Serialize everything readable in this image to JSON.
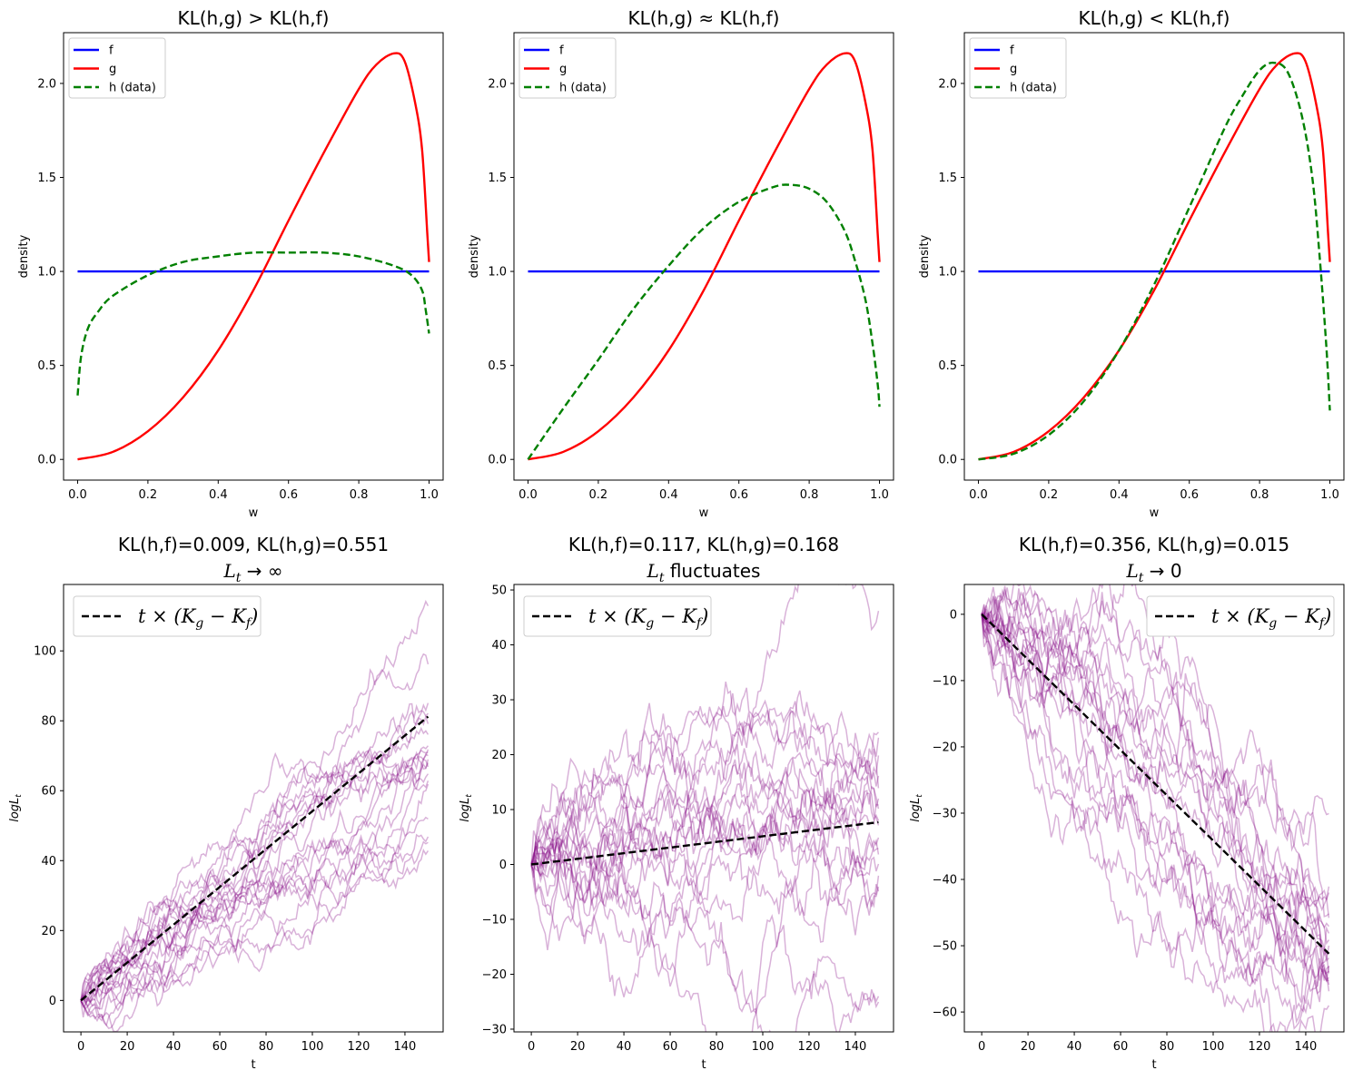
{
  "chart_data": [
    {
      "type": "line",
      "title": "KL(h,g) > KL(h,f)",
      "xlabel": "w",
      "ylabel": "density",
      "xlim": [
        -0.04,
        1.04
      ],
      "ylim": [
        -0.11,
        2.27
      ],
      "xticks": [
        "0.0",
        "0.2",
        "0.4",
        "0.6",
        "0.8",
        "1.0"
      ],
      "yticks": [
        "0.0",
        "0.5",
        "1.0",
        "1.5",
        "2.0"
      ],
      "legend_position": "upper-left",
      "grid": false,
      "series": [
        {
          "name": "f",
          "color": "#0000ff",
          "style": "solid",
          "points": [
            [
              0,
              1.0
            ],
            [
              1,
              1.0
            ]
          ]
        },
        {
          "name": "g",
          "color": "#ff0000",
          "style": "solid",
          "points": [
            [
              0,
              0
            ],
            [
              0.1,
              0.04
            ],
            [
              0.2,
              0.15
            ],
            [
              0.3,
              0.33
            ],
            [
              0.4,
              0.58
            ],
            [
              0.5,
              0.9
            ],
            [
              0.6,
              1.27
            ],
            [
              0.7,
              1.63
            ],
            [
              0.8,
              1.97
            ],
            [
              0.85,
              2.1
            ],
            [
              0.9,
              2.16
            ],
            [
              0.93,
              2.12
            ],
            [
              0.96,
              1.9
            ],
            [
              0.98,
              1.65
            ],
            [
              0.995,
              1.2
            ],
            [
              1.0,
              1.05
            ]
          ]
        },
        {
          "name": "h (data)",
          "color": "#008000",
          "style": "dashed",
          "points": [
            [
              0,
              0.34
            ],
            [
              0.01,
              0.55
            ],
            [
              0.03,
              0.7
            ],
            [
              0.06,
              0.79
            ],
            [
              0.1,
              0.87
            ],
            [
              0.2,
              0.98
            ],
            [
              0.3,
              1.05
            ],
            [
              0.4,
              1.08
            ],
            [
              0.5,
              1.1
            ],
            [
              0.6,
              1.1
            ],
            [
              0.7,
              1.1
            ],
            [
              0.8,
              1.08
            ],
            [
              0.9,
              1.03
            ],
            [
              0.95,
              0.98
            ],
            [
              0.98,
              0.9
            ],
            [
              0.99,
              0.8
            ],
            [
              1.0,
              0.67
            ]
          ]
        }
      ]
    },
    {
      "type": "line",
      "title": "KL(h,g) ≈ KL(h,f)",
      "xlabel": "w",
      "ylabel": "density",
      "xlim": [
        -0.04,
        1.04
      ],
      "ylim": [
        -0.11,
        2.27
      ],
      "xticks": [
        "0.0",
        "0.2",
        "0.4",
        "0.6",
        "0.8",
        "1.0"
      ],
      "yticks": [
        "0.0",
        "0.5",
        "1.0",
        "1.5",
        "2.0"
      ],
      "legend_position": "upper-left",
      "grid": false,
      "series": [
        {
          "name": "f",
          "color": "#0000ff",
          "style": "solid",
          "points": [
            [
              0,
              1.0
            ],
            [
              1,
              1.0
            ]
          ]
        },
        {
          "name": "g",
          "color": "#ff0000",
          "style": "solid",
          "points": [
            [
              0,
              0
            ],
            [
              0.1,
              0.04
            ],
            [
              0.2,
              0.15
            ],
            [
              0.3,
              0.33
            ],
            [
              0.4,
              0.58
            ],
            [
              0.5,
              0.9
            ],
            [
              0.6,
              1.27
            ],
            [
              0.7,
              1.63
            ],
            [
              0.8,
              1.97
            ],
            [
              0.85,
              2.1
            ],
            [
              0.9,
              2.16
            ],
            [
              0.93,
              2.12
            ],
            [
              0.96,
              1.9
            ],
            [
              0.98,
              1.65
            ],
            [
              0.995,
              1.2
            ],
            [
              1.0,
              1.05
            ]
          ]
        },
        {
          "name": "h (data)",
          "color": "#008000",
          "style": "dashed",
          "points": [
            [
              0,
              0
            ],
            [
              0.1,
              0.27
            ],
            [
              0.2,
              0.53
            ],
            [
              0.3,
              0.8
            ],
            [
              0.4,
              1.03
            ],
            [
              0.5,
              1.23
            ],
            [
              0.6,
              1.37
            ],
            [
              0.7,
              1.45
            ],
            [
              0.75,
              1.46
            ],
            [
              0.8,
              1.44
            ],
            [
              0.85,
              1.37
            ],
            [
              0.9,
              1.22
            ],
            [
              0.93,
              1.06
            ],
            [
              0.96,
              0.85
            ],
            [
              0.98,
              0.62
            ],
            [
              0.995,
              0.4
            ],
            [
              1.0,
              0.28
            ]
          ]
        }
      ]
    },
    {
      "type": "line",
      "title": "KL(h,g) < KL(h,f)",
      "xlabel": "w",
      "ylabel": "density",
      "xlim": [
        -0.04,
        1.04
      ],
      "ylim": [
        -0.11,
        2.27
      ],
      "xticks": [
        "0.0",
        "0.2",
        "0.4",
        "0.6",
        "0.8",
        "1.0"
      ],
      "yticks": [
        "0.0",
        "0.5",
        "1.0",
        "1.5",
        "2.0"
      ],
      "legend_position": "upper-left",
      "grid": false,
      "series": [
        {
          "name": "f",
          "color": "#0000ff",
          "style": "solid",
          "points": [
            [
              0,
              1.0
            ],
            [
              1,
              1.0
            ]
          ]
        },
        {
          "name": "g",
          "color": "#ff0000",
          "style": "solid",
          "points": [
            [
              0,
              0
            ],
            [
              0.1,
              0.04
            ],
            [
              0.2,
              0.15
            ],
            [
              0.3,
              0.33
            ],
            [
              0.4,
              0.58
            ],
            [
              0.5,
              0.9
            ],
            [
              0.6,
              1.27
            ],
            [
              0.7,
              1.63
            ],
            [
              0.8,
              1.97
            ],
            [
              0.85,
              2.1
            ],
            [
              0.9,
              2.16
            ],
            [
              0.93,
              2.12
            ],
            [
              0.96,
              1.9
            ],
            [
              0.98,
              1.65
            ],
            [
              0.995,
              1.2
            ],
            [
              1.0,
              1.05
            ]
          ]
        },
        {
          "name": "h (data)",
          "color": "#008000",
          "style": "dashed",
          "points": [
            [
              0,
              0
            ],
            [
              0.1,
              0.03
            ],
            [
              0.2,
              0.13
            ],
            [
              0.3,
              0.31
            ],
            [
              0.4,
              0.58
            ],
            [
              0.5,
              0.93
            ],
            [
              0.6,
              1.34
            ],
            [
              0.7,
              1.76
            ],
            [
              0.75,
              1.93
            ],
            [
              0.8,
              2.07
            ],
            [
              0.84,
              2.11
            ],
            [
              0.88,
              2.06
            ],
            [
              0.92,
              1.83
            ],
            [
              0.95,
              1.5
            ],
            [
              0.97,
              1.1
            ],
            [
              0.99,
              0.6
            ],
            [
              1.0,
              0.26
            ]
          ]
        }
      ]
    },
    {
      "type": "line",
      "title": "KL(h,f)=0.009, KL(h,g)=0.551",
      "subtitle": "→ ∞",
      "xlabel": "t",
      "ylabel": "logLt",
      "xlim": [
        -7.5,
        156.5
      ],
      "ylim": [
        -9,
        119
      ],
      "xticks": [
        "0",
        "20",
        "40",
        "60",
        "80",
        "100",
        "120",
        "140"
      ],
      "yticks": [
        "0",
        "20",
        "40",
        "60",
        "80",
        "100"
      ],
      "legend_position": "upper-left",
      "grid": false,
      "n_paths": 20,
      "path_color": "#800080",
      "path_alpha": 0.3,
      "path_final_values": [
        113,
        96,
        85,
        82,
        79,
        76,
        73,
        72,
        71,
        70,
        69,
        68,
        67,
        65,
        63,
        62,
        52,
        47,
        45,
        43
      ],
      "series": [
        {
          "name": "t × (Kg − Kf)",
          "color": "#000000",
          "style": "dashed",
          "points": [
            [
              0,
              0
            ],
            [
              150,
              81.2
            ]
          ]
        }
      ]
    },
    {
      "type": "line",
      "title": "KL(h,f)=0.117, KL(h,g)=0.168",
      "subtitle": "fluctuates",
      "xlabel": "t",
      "ylabel": "logLt",
      "xlim": [
        -7.5,
        156.5
      ],
      "ylim": [
        -30.5,
        51
      ],
      "xticks": [
        "0",
        "20",
        "40",
        "60",
        "80",
        "100",
        "120",
        "140"
      ],
      "yticks": [
        "−30",
        "−20",
        "−10",
        "0",
        "10",
        "20",
        "30",
        "40",
        "50"
      ],
      "legend_position": "upper-left",
      "grid": false,
      "n_paths": 20,
      "path_color": "#800080",
      "path_alpha": 0.3,
      "path_final_values": [
        46,
        24,
        23,
        16,
        14,
        12,
        10,
        8,
        7,
        5,
        3,
        2,
        0,
        -2,
        -4,
        -5,
        -24,
        -25,
        20,
        11
      ],
      "series": [
        {
          "name": "t × (Kg − Kf)",
          "color": "#000000",
          "style": "dashed",
          "points": [
            [
              0,
              0
            ],
            [
              150,
              7.7
            ]
          ]
        }
      ]
    },
    {
      "type": "line",
      "title": "KL(h,f)=0.356, KL(h,g)=0.015",
      "subtitle": "→ 0",
      "xlabel": "t",
      "ylabel": "logLt",
      "xlim": [
        -7.5,
        156.5
      ],
      "ylim": [
        -63,
        4.5
      ],
      "xticks": [
        "0",
        "20",
        "40",
        "60",
        "80",
        "100",
        "120",
        "140"
      ],
      "yticks": [
        "0",
        "−10",
        "−20",
        "−30",
        "−40",
        "−50",
        "−60"
      ],
      "legend_position": "upper-right",
      "grid": false,
      "n_paths": 20,
      "path_color": "#800080",
      "path_alpha": 0.3,
      "path_final_values": [
        -30,
        -41,
        -42,
        -45,
        -46,
        -47,
        -48,
        -49,
        -50,
        -51,
        -52,
        -53,
        -53,
        -54,
        -54,
        -55,
        -55,
        -56,
        -57,
        -59
      ],
      "series": [
        {
          "name": "t × (Kg − Kf)",
          "color": "#000000",
          "style": "dashed",
          "points": [
            [
              0,
              0
            ],
            [
              150,
              -51.2
            ]
          ]
        }
      ]
    }
  ]
}
